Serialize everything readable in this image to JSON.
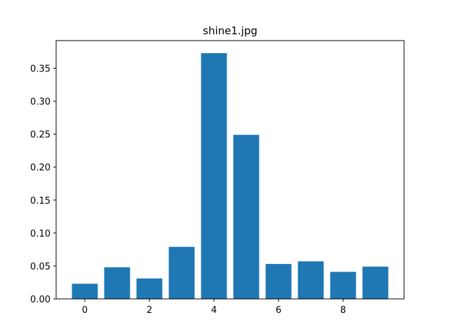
{
  "chart_data": {
    "type": "bar",
    "title": "shine1.jpg",
    "xlabel": "",
    "ylabel": "",
    "x": [
      0,
      1,
      2,
      3,
      4,
      5,
      6,
      7,
      8,
      9
    ],
    "values": [
      0.023,
      0.048,
      0.031,
      0.079,
      0.373,
      0.249,
      0.053,
      0.057,
      0.041,
      0.049
    ],
    "xlim": [
      -0.89,
      9.89
    ],
    "ylim": [
      0,
      0.392
    ],
    "x_ticks": [
      0,
      2,
      4,
      6,
      8
    ],
    "x_tick_labels": [
      "0",
      "2",
      "4",
      "6",
      "8"
    ],
    "y_ticks": [
      0,
      0.05,
      0.1,
      0.15,
      0.2,
      0.25,
      0.3,
      0.35
    ],
    "y_tick_labels": [
      "0.00",
      "0.05",
      "0.10",
      "0.15",
      "0.20",
      "0.25",
      "0.30",
      "0.35"
    ],
    "bar_width": 0.8,
    "bar_color": "#1f77b4",
    "grid": false,
    "legend": "none"
  }
}
